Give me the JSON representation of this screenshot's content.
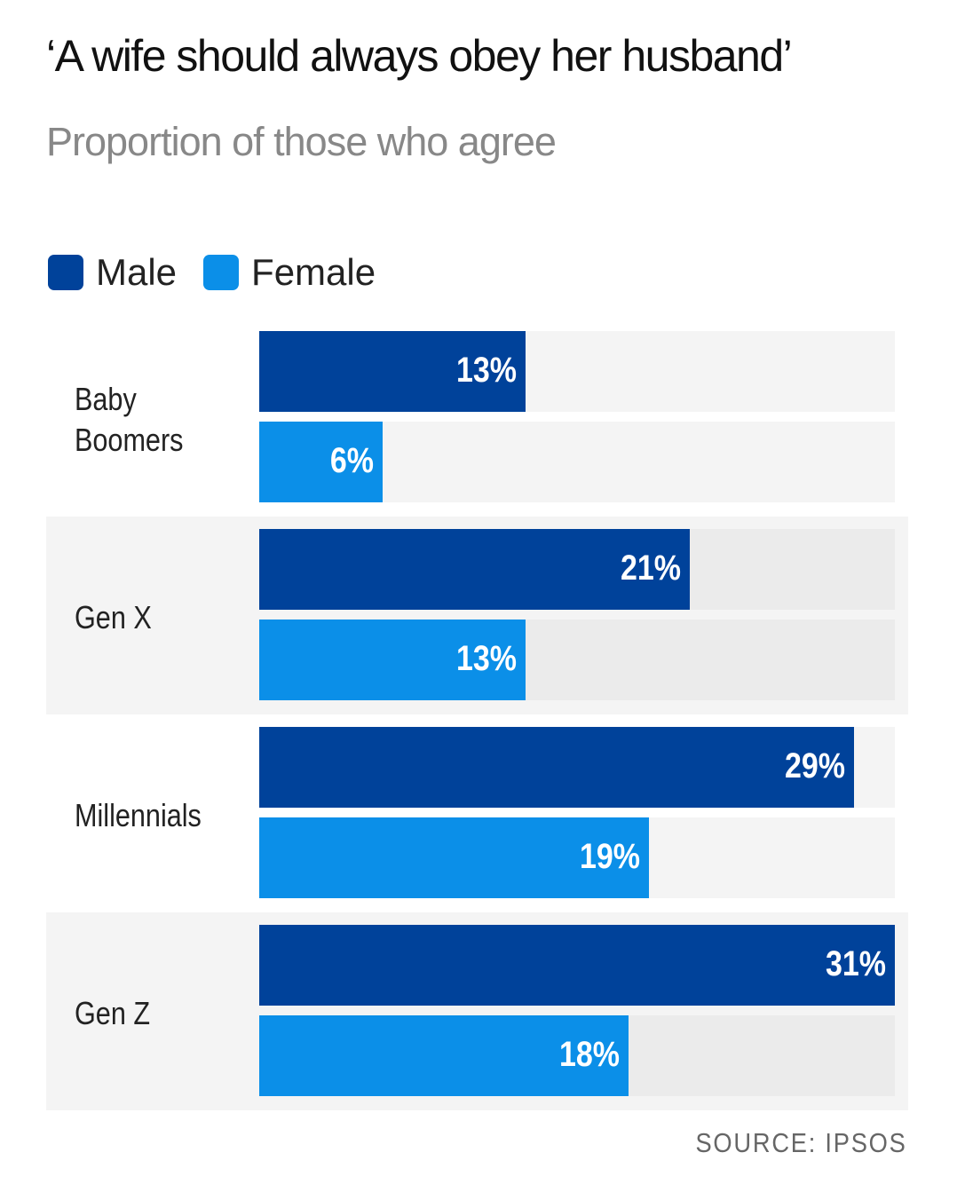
{
  "chart_data": {
    "type": "bar",
    "orientation": "horizontal",
    "title": "‘A wife should always obey her husband’",
    "subtitle": "Proportion of those who agree",
    "categories": [
      "Baby Boomers",
      "Gen X",
      "Millennials",
      "Gen Z"
    ],
    "series": [
      {
        "name": "Male",
        "color": "#00429a",
        "values": [
          13,
          21,
          29,
          31
        ],
        "labels": [
          "13%",
          "21%",
          "29%",
          "31%"
        ]
      },
      {
        "name": "Female",
        "color": "#0b8fe8",
        "values": [
          6,
          13,
          19,
          18
        ],
        "labels": [
          "6%",
          "13%",
          "19%",
          "18%"
        ]
      }
    ],
    "xlim": [
      0,
      31
    ],
    "legend": "top-left",
    "grid": false,
    "source": "SOURCE: IPSOS"
  }
}
